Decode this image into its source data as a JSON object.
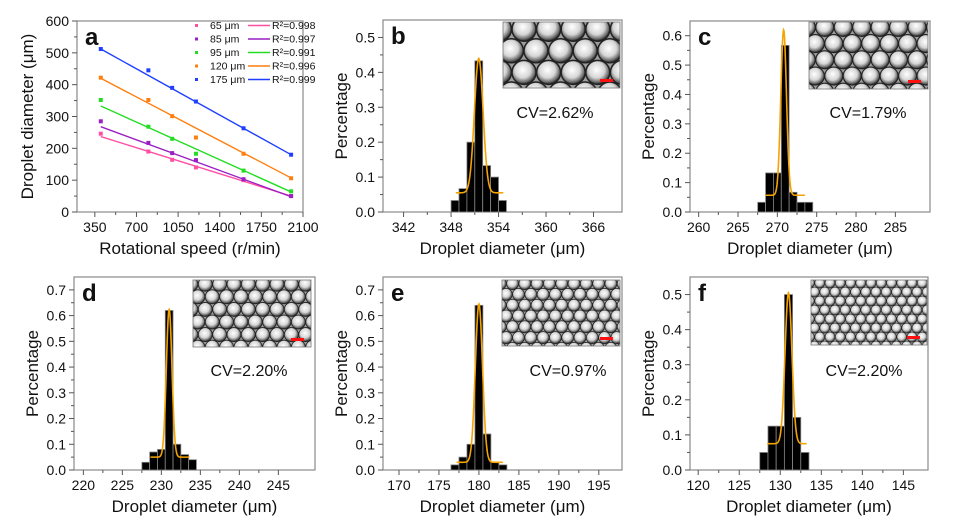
{
  "chart_data": [
    {
      "panel": "a",
      "type": "scatter",
      "xlabel": "Rotational speed (r/min)",
      "ylabel": "Droplet diameter (μm)",
      "xlim": [
        200,
        2100
      ],
      "ylim": [
        0,
        600
      ],
      "xticks": [
        350,
        700,
        1050,
        1400,
        1750,
        2100
      ],
      "yticks": [
        0,
        100,
        200,
        300,
        400,
        500,
        600
      ],
      "legend_position": "top-right",
      "x": [
        400,
        800,
        1000,
        1200,
        1600,
        2000
      ],
      "series": [
        {
          "name": "65 μm",
          "fit_label": "R²=0.998",
          "color": "#ff4fa3",
          "values": [
            246,
            190,
            164,
            140,
            100,
            50
          ],
          "fit": [
            237,
            50
          ]
        },
        {
          "name": "85 μm",
          "fit_label": "R²=0.997",
          "color": "#9a1fc4",
          "values": [
            285,
            217,
            185,
            163,
            103,
            50
          ],
          "fit": [
            268,
            48
          ]
        },
        {
          "name": "95 μm",
          "fit_label": "R²=0.991",
          "color": "#22dd22",
          "values": [
            352,
            268,
            230,
            183,
            130,
            65
          ],
          "fit": [
            333,
            63
          ]
        },
        {
          "name": "120 μm",
          "fit_label": "R²=0.996",
          "color": "#ff7f0e",
          "values": [
            422,
            352,
            301,
            234,
            183,
            106
          ],
          "fit": [
            420,
            107
          ]
        },
        {
          "name": "175 μm",
          "fit_label": "R²=0.999",
          "color": "#1f3fff",
          "values": [
            512,
            445,
            390,
            347,
            263,
            180
          ],
          "fit": [
            512,
            180
          ]
        }
      ]
    },
    {
      "panel": "b",
      "type": "bar",
      "cv": "CV=2.62%",
      "xlabel": "Droplet diameter (μm)",
      "ylabel": "Percentage",
      "xlim": [
        339.4,
        369.6
      ],
      "ylim": [
        0,
        0.55
      ],
      "xticks": [
        342,
        348,
        354,
        360,
        366
      ],
      "yticks": [
        "0.0",
        "0.1",
        "0.2",
        "0.3",
        "0.4",
        "0.5"
      ],
      "x": [
        348.5,
        349.5,
        350.5,
        351.5,
        352.5,
        353.5,
        354.5
      ],
      "values": [
        0.033,
        0.067,
        0.2,
        0.433,
        0.133,
        0.1,
        0.033
      ],
      "fit": {
        "color": "#f5a300",
        "center": 351.5,
        "peak": 0.44,
        "baseline": 0.055,
        "sigma": 0.55,
        "range": [
          348.6,
          354.6
        ]
      }
    },
    {
      "panel": "c",
      "type": "bar",
      "cv": "CV=1.79%",
      "xlabel": "Droplet diameter (μm)",
      "ylabel": "Percentage",
      "xlim": [
        258.9,
        289.4
      ],
      "ylim": [
        0,
        0.65
      ],
      "xticks": [
        260,
        265,
        270,
        275,
        280,
        285
      ],
      "yticks": [
        "0.0",
        "0.1",
        "0.2",
        "0.3",
        "0.4",
        "0.5",
        "0.6"
      ],
      "x": [
        268,
        269,
        270,
        271,
        272,
        273,
        274
      ],
      "values": [
        0.033,
        0.133,
        0.133,
        0.567,
        0.067,
        0.033,
        0.033
      ],
      "fit": {
        "color": "#f5a300",
        "center": 270.8,
        "peak": 0.62,
        "baseline": 0.057,
        "sigma": 0.36,
        "range": [
          268.5,
          273.5
        ]
      }
    },
    {
      "panel": "d",
      "type": "bar",
      "cv": "CV=2.20%",
      "xlabel": "Droplet diameter (μm)",
      "ylabel": "Percentage",
      "xlim": [
        218.8,
        249.7
      ],
      "ylim": [
        0,
        0.75
      ],
      "xticks": [
        220,
        225,
        230,
        235,
        240,
        245
      ],
      "yticks": [
        "0.0",
        "0.1",
        "0.2",
        "0.3",
        "0.4",
        "0.5",
        "0.6",
        "0.7"
      ],
      "x": [
        228,
        229,
        230,
        231,
        232,
        233,
        234
      ],
      "values": [
        0.03,
        0.07,
        0.08,
        0.62,
        0.1,
        0.06,
        0.04
      ],
      "fit": {
        "color": "#f5a300",
        "center": 231,
        "peak": 0.625,
        "baseline": 0.05,
        "sigma": 0.36,
        "range": [
          228.6,
          233.6
        ]
      }
    },
    {
      "panel": "e",
      "type": "bar",
      "cv": "CV=0.97%",
      "xlabel": "Droplet diameter (μm)",
      "ylabel": "Percentage",
      "xlim": [
        168,
        197.9
      ],
      "ylim": [
        0,
        0.75
      ],
      "xticks": [
        170,
        175,
        180,
        185,
        190,
        195
      ],
      "yticks": [
        "0.0",
        "0.1",
        "0.2",
        "0.3",
        "0.4",
        "0.5",
        "0.6",
        "0.7"
      ],
      "x": [
        177,
        178,
        179,
        180,
        181,
        182,
        183
      ],
      "values": [
        0.02,
        0.05,
        0.1,
        0.64,
        0.14,
        0.03,
        0.02
      ],
      "fit": {
        "color": "#f5a300",
        "center": 180,
        "peak": 0.645,
        "baseline": 0.03,
        "sigma": 0.45,
        "range": [
          177.2,
          183
        ]
      }
    },
    {
      "panel": "f",
      "type": "bar",
      "cv": "CV=2.20%",
      "xlabel": "Droplet diameter (μm)",
      "ylabel": "Percentage",
      "xlim": [
        119,
        148
      ],
      "ylim": [
        0,
        0.55
      ],
      "xticks": [
        120,
        125,
        130,
        135,
        140,
        145
      ],
      "yticks": [
        "0.0",
        "0.1",
        "0.2",
        "0.3",
        "0.4",
        "0.5"
      ],
      "x": [
        128,
        129,
        130,
        131,
        132,
        133
      ],
      "values": [
        0.05,
        0.125,
        0.125,
        0.5,
        0.15,
        0.05
      ],
      "fit": {
        "color": "#f5a300",
        "center": 131,
        "peak": 0.505,
        "baseline": 0.075,
        "sigma": 0.42,
        "range": [
          128.4,
          133.2
        ]
      }
    }
  ]
}
